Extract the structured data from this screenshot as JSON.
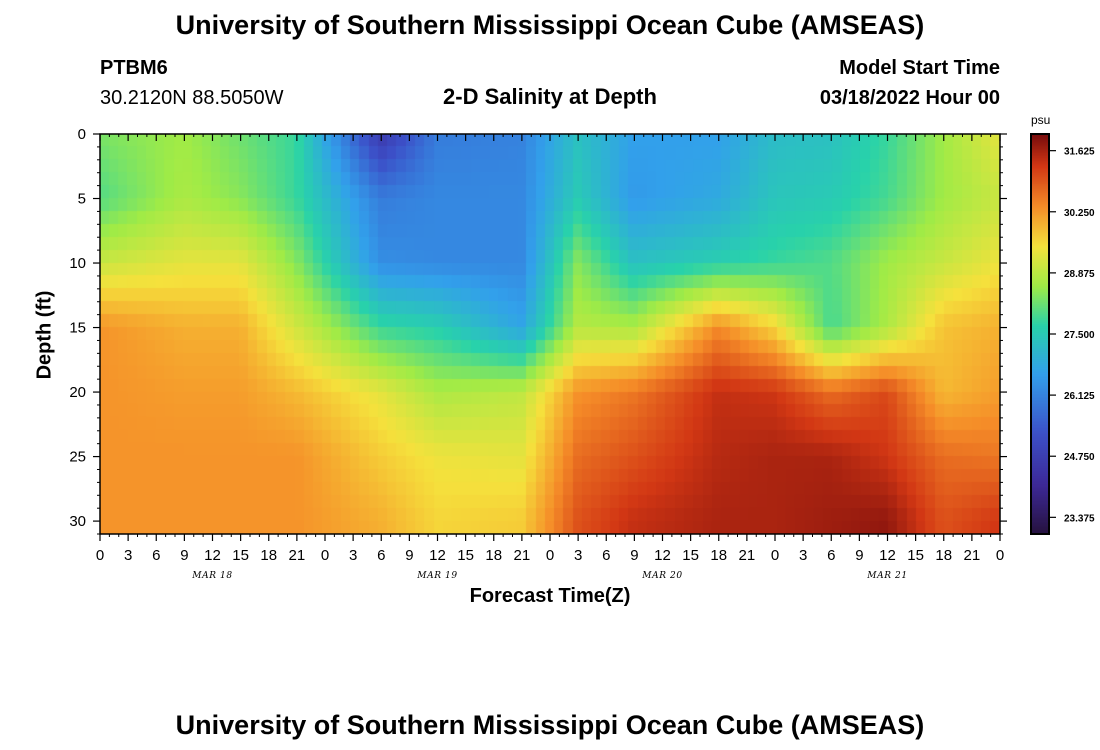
{
  "header": {
    "title": "University of Southern Mississippi Ocean Cube (AMSEAS)",
    "station_id": "PTBM6",
    "station_coords": "30.2120N  88.5050W",
    "chart_title": "2-D Salinity at Depth",
    "model_label": "Model Start Time",
    "model_time": "03/18/2022 Hour 00"
  },
  "footer": {
    "title": "University of Southern Mississippi Ocean Cube (AMSEAS)"
  },
  "chart_data": {
    "type": "heatmap",
    "title": "2-D Salinity at Depth",
    "xlabel": "Forecast Time(Z)",
    "ylabel": "Depth (ft)",
    "units": "psu",
    "x_hours_range": [
      0,
      96
    ],
    "x_tick_labels": [
      "0",
      "3",
      "6",
      "9",
      "12",
      "15",
      "18",
      "21",
      "0",
      "3",
      "6",
      "9",
      "12",
      "15",
      "18",
      "21",
      "0",
      "3",
      "6",
      "9",
      "12",
      "15",
      "18",
      "21",
      "0",
      "3",
      "6",
      "9",
      "12",
      "15",
      "18",
      "21",
      "0"
    ],
    "date_labels": [
      {
        "hour": 12,
        "label": "MAR 18"
      },
      {
        "hour": 36,
        "label": "MAR 19"
      },
      {
        "hour": 60,
        "label": "MAR 20"
      },
      {
        "hour": 84,
        "label": "MAR 21"
      }
    ],
    "ylim": [
      0,
      31
    ],
    "y_ticks": [
      "0",
      "5",
      "10",
      "15",
      "20",
      "25",
      "30"
    ],
    "colorbar": {
      "label": "psu",
      "range": [
        23.0,
        32.0
      ],
      "ticks": [
        "31.625",
        "30.250",
        "28.875",
        "27.500",
        "26.125",
        "24.750",
        "23.375"
      ]
    },
    "profile_hours": [
      0,
      9,
      15,
      21,
      30,
      36,
      45,
      51,
      57,
      66,
      72,
      78,
      84,
      90,
      96
    ],
    "profile_depths": [
      0,
      5,
      10,
      15,
      20,
      25,
      30
    ],
    "salinity_grid": [
      [
        28.3,
        28.0,
        29.0,
        30.3,
        30.3,
        30.3,
        30.3
      ],
      [
        28.6,
        28.7,
        29.3,
        30.0,
        30.2,
        30.3,
        30.3
      ],
      [
        28.2,
        28.4,
        29.3,
        30.0,
        30.2,
        30.3,
        30.3
      ],
      [
        27.8,
        27.8,
        28.4,
        29.1,
        29.9,
        30.3,
        30.3
      ],
      [
        24.6,
        26.0,
        26.3,
        27.8,
        29.3,
        29.7,
        30.0
      ],
      [
        26.0,
        26.2,
        26.2,
        27.6,
        28.7,
        29.4,
        29.6
      ],
      [
        26.1,
        26.2,
        26.2,
        26.7,
        28.9,
        29.3,
        29.7
      ],
      [
        27.3,
        27.5,
        28.4,
        28.8,
        30.3,
        30.7,
        31.0
      ],
      [
        26.6,
        26.5,
        27.3,
        28.7,
        30.6,
        31.0,
        31.4
      ],
      [
        26.6,
        26.8,
        27.6,
        30.4,
        31.4,
        31.5,
        31.6
      ],
      [
        27.2,
        27.4,
        27.8,
        29.6,
        31.3,
        31.6,
        31.6
      ],
      [
        27.3,
        27.5,
        28.0,
        27.9,
        30.7,
        31.6,
        31.7
      ],
      [
        27.8,
        27.9,
        28.6,
        28.7,
        31.1,
        31.3,
        31.8
      ],
      [
        28.6,
        28.6,
        29.0,
        29.8,
        29.9,
        30.7,
        31.0
      ],
      [
        29.3,
        29.0,
        29.4,
        30.0,
        30.2,
        30.6,
        31.3
      ]
    ],
    "bottom_label": "Forecast Time(Z)"
  }
}
